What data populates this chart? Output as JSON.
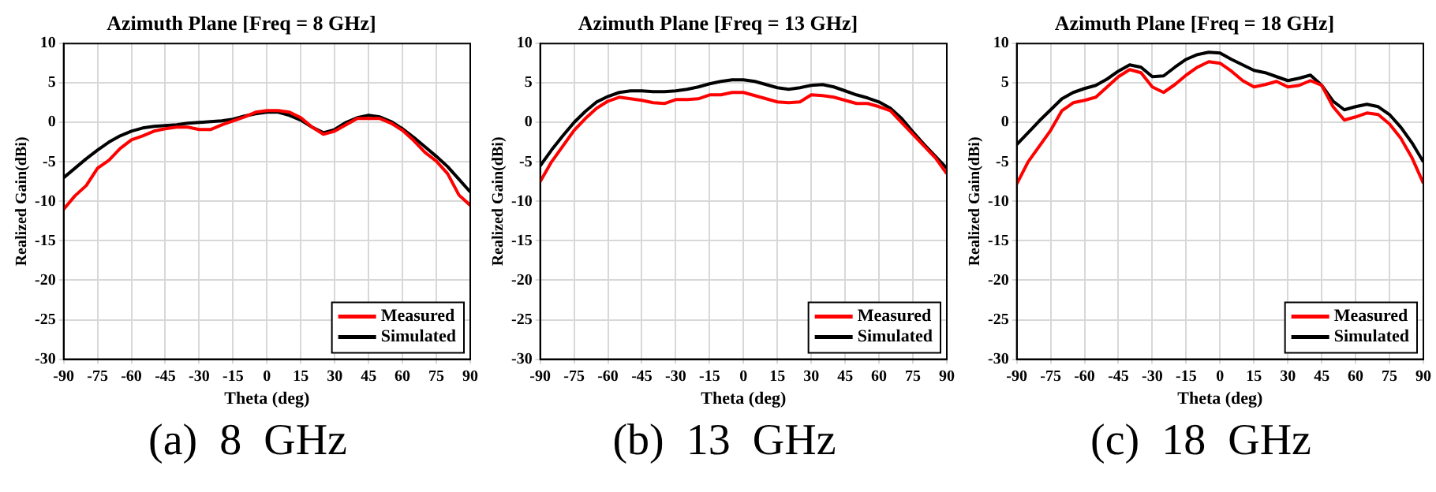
{
  "chart_data": [
    {
      "type": "line",
      "title": "Azimuth Plane [Freq = 8 GHz]",
      "xlabel": "Theta (deg)",
      "ylabel": "Realized Gain(dBi)",
      "annotations": [
        "(a)  8  GHz"
      ],
      "x": [
        -90,
        -85,
        -80,
        -75,
        -70,
        -65,
        -60,
        -55,
        -50,
        -45,
        -40,
        -35,
        -30,
        -25,
        -20,
        -15,
        -10,
        -5,
        0,
        5,
        10,
        15,
        20,
        25,
        30,
        35,
        40,
        45,
        50,
        55,
        60,
        65,
        70,
        75,
        80,
        85,
        90
      ],
      "series": [
        {
          "name": "Measured",
          "color": "#ff0000",
          "values": [
            -11,
            -9.3,
            -8,
            -5.8,
            -4.8,
            -3.3,
            -2.2,
            -1.7,
            -1.1,
            -0.8,
            -0.6,
            -0.6,
            -0.9,
            -0.9,
            -0.3,
            0.2,
            0.7,
            1.3,
            1.5,
            1.5,
            1.3,
            0.6,
            -0.6,
            -1.5,
            -1.1,
            -0.3,
            0.5,
            0.5,
            0.5,
            -0.1,
            -1,
            -2.3,
            -3.8,
            -4.9,
            -6.5,
            -9.2,
            -10.5
          ]
        },
        {
          "name": "Simulated",
          "color": "#000000",
          "values": [
            -7,
            -5.8,
            -4.6,
            -3.5,
            -2.5,
            -1.7,
            -1.1,
            -0.7,
            -0.5,
            -0.4,
            -0.3,
            -0.1,
            0,
            0.1,
            0.2,
            0.4,
            0.8,
            1.1,
            1.3,
            1.3,
            0.9,
            0.3,
            -0.6,
            -1.3,
            -0.9,
            0,
            0.6,
            0.9,
            0.7,
            0.1,
            -0.8,
            -1.9,
            -3.1,
            -4.3,
            -5.6,
            -7.2,
            -8.8
          ]
        }
      ],
      "xlim": [
        -90,
        90
      ],
      "xticks": [
        -90,
        -75,
        -60,
        -45,
        -30,
        -15,
        0,
        15,
        30,
        45,
        60,
        75,
        90
      ],
      "ylim": [
        -30,
        10
      ],
      "yticks": [
        -30,
        -25,
        -20,
        -15,
        -10,
        -5,
        0,
        5,
        10
      ],
      "grid": true,
      "legend": "bottom right",
      "marker": "none",
      "line_style": "solid"
    },
    {
      "type": "line",
      "title": "Azimuth Plane [Freq = 13 GHz]",
      "xlabel": "Theta (deg)",
      "ylabel": "Realized Gain(dBi)",
      "annotations": [
        "(b)  13  GHz"
      ],
      "x": [
        -90,
        -85,
        -80,
        -75,
        -70,
        -65,
        -60,
        -55,
        -50,
        -45,
        -40,
        -35,
        -30,
        -25,
        -20,
        -15,
        -10,
        -5,
        0,
        5,
        10,
        15,
        20,
        25,
        30,
        35,
        40,
        45,
        50,
        55,
        60,
        65,
        70,
        75,
        80,
        85,
        90
      ],
      "series": [
        {
          "name": "Measured",
          "color": "#ff0000",
          "values": [
            -7.5,
            -5,
            -3,
            -1,
            0.5,
            1.8,
            2.7,
            3.2,
            3,
            2.8,
            2.5,
            2.4,
            2.9,
            2.9,
            3,
            3.5,
            3.5,
            3.8,
            3.8,
            3.4,
            3,
            2.6,
            2.5,
            2.6,
            3.5,
            3.4,
            3.2,
            2.8,
            2.4,
            2.4,
            2,
            1.5,
            0,
            -1.5,
            -3,
            -4.5,
            -6.5
          ]
        },
        {
          "name": "Simulated",
          "color": "#000000",
          "values": [
            -5.5,
            -3.5,
            -1.7,
            0,
            1.4,
            2.6,
            3.3,
            3.8,
            4,
            4,
            3.9,
            3.9,
            4,
            4.2,
            4.5,
            4.9,
            5.2,
            5.4,
            5.4,
            5.2,
            4.8,
            4.4,
            4.2,
            4.4,
            4.7,
            4.8,
            4.5,
            4,
            3.5,
            3.1,
            2.6,
            1.8,
            0.5,
            -1.2,
            -2.8,
            -4.3,
            -5.8
          ]
        }
      ],
      "xlim": [
        -90,
        90
      ],
      "xticks": [
        -90,
        -75,
        -60,
        -45,
        -30,
        -15,
        0,
        15,
        30,
        45,
        60,
        75,
        90
      ],
      "ylim": [
        -30,
        10
      ],
      "yticks": [
        -30,
        -25,
        -20,
        -15,
        -10,
        -5,
        0,
        5,
        10
      ],
      "grid": true,
      "legend": "bottom right",
      "marker": "none",
      "line_style": "solid"
    },
    {
      "type": "line",
      "title": "Azimuth Plane [Freq = 18 GHz]",
      "xlabel": "Theta (deg)",
      "ylabel": "Realized Gain(dBi)",
      "annotations": [
        "(c)  18  GHz"
      ],
      "x": [
        -90,
        -85,
        -80,
        -75,
        -70,
        -65,
        -60,
        -55,
        -50,
        -45,
        -40,
        -35,
        -30,
        -25,
        -20,
        -15,
        -10,
        -5,
        0,
        5,
        10,
        15,
        20,
        25,
        30,
        35,
        40,
        45,
        50,
        55,
        60,
        65,
        70,
        75,
        80,
        85,
        90
      ],
      "series": [
        {
          "name": "Measured",
          "color": "#ff0000",
          "values": [
            -7.8,
            -5,
            -3,
            -1,
            1.5,
            2.5,
            2.8,
            3.2,
            4.5,
            5.8,
            6.7,
            6.3,
            4.5,
            3.8,
            4.8,
            6,
            7,
            7.7,
            7.5,
            6.5,
            5.3,
            4.5,
            4.8,
            5.2,
            4.5,
            4.7,
            5.3,
            4.7,
            2,
            0.3,
            0.7,
            1.2,
            1,
            -0.2,
            -2,
            -4.5,
            -7.7
          ]
        },
        {
          "name": "Simulated",
          "color": "#000000",
          "values": [
            -2.8,
            -1.3,
            0.2,
            1.6,
            3,
            3.8,
            4.3,
            4.7,
            5.5,
            6.5,
            7.3,
            7,
            5.8,
            5.9,
            7,
            8,
            8.6,
            8.9,
            8.8,
            8,
            7.3,
            6.6,
            6.3,
            5.8,
            5.3,
            5.6,
            6,
            4.7,
            2.7,
            1.6,
            2,
            2.3,
            2,
            1,
            -0.6,
            -2.6,
            -5
          ]
        }
      ],
      "xlim": [
        -90,
        90
      ],
      "xticks": [
        -90,
        -75,
        -60,
        -45,
        -30,
        -15,
        0,
        15,
        30,
        45,
        60,
        75,
        90
      ],
      "ylim": [
        -30,
        10
      ],
      "yticks": [
        -30,
        -25,
        -20,
        -15,
        -10,
        -5,
        0,
        5,
        10
      ],
      "grid": true,
      "legend": "bottom right",
      "marker": "none",
      "line_style": "solid"
    }
  ]
}
